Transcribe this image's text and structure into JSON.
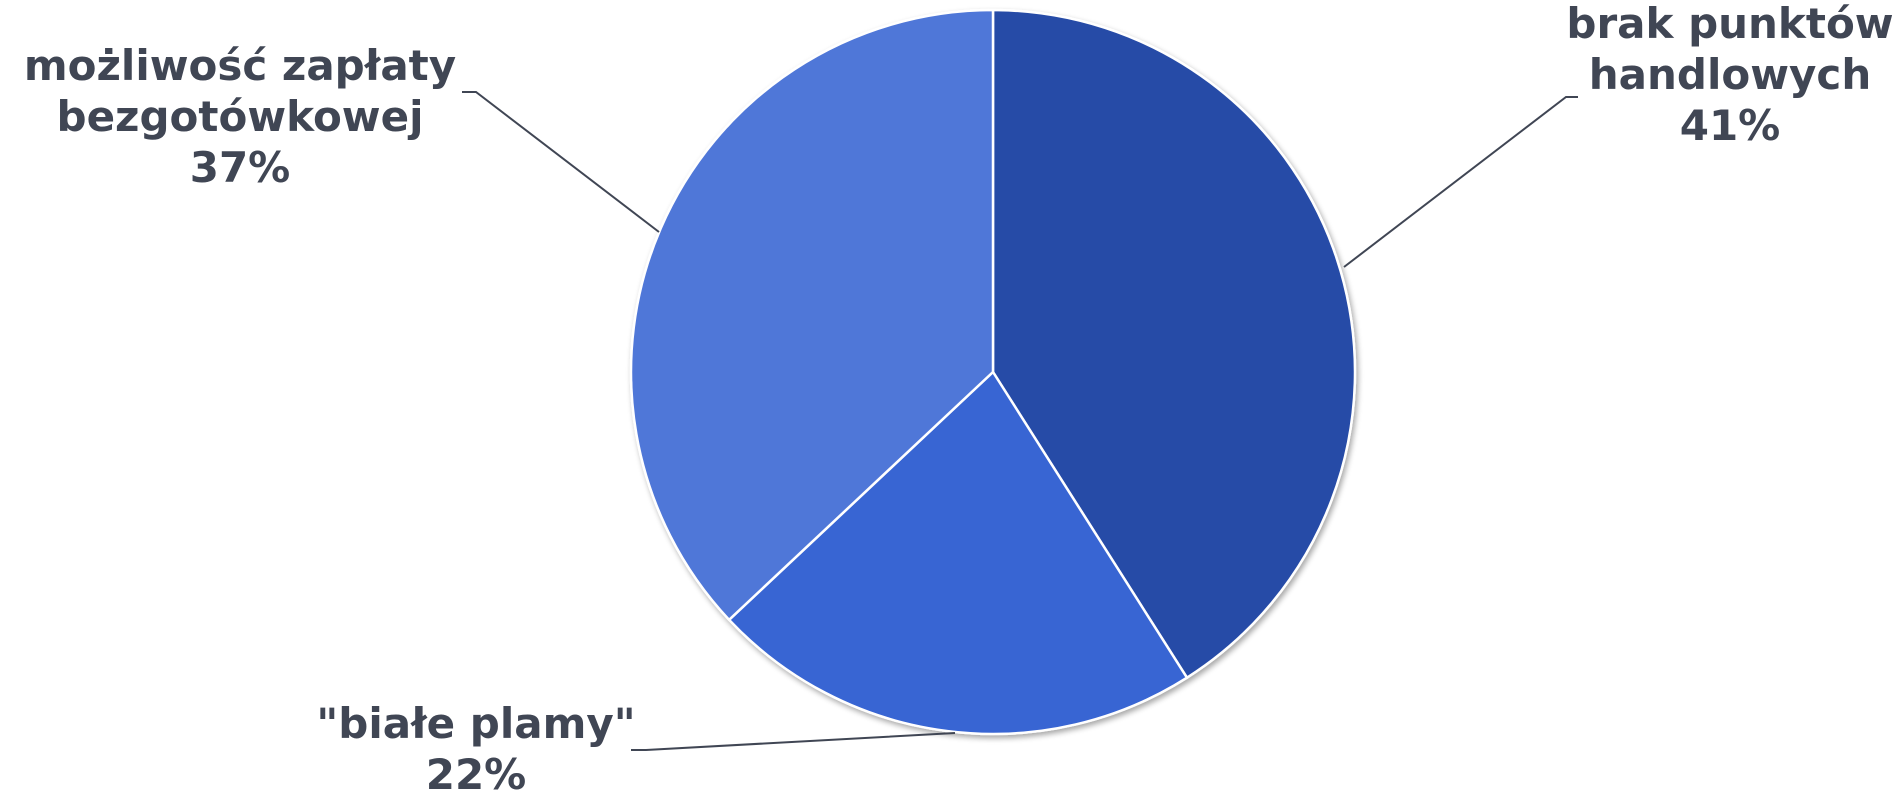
{
  "chart_data": {
    "type": "pie",
    "title": "",
    "slices": [
      {
        "label_lines": [
          "brak punktów",
          "handlowych"
        ],
        "value": 41,
        "value_label": "41%",
        "color": "#264BA7"
      },
      {
        "label_lines": [
          "\"białe plamy\""
        ],
        "value": 22,
        "value_label": "22%",
        "color": "#3865D3"
      },
      {
        "label_lines": [
          "możliwość zapłaty",
          "bezgotówkowej"
        ],
        "value": 37,
        "value_label": "37%",
        "color": "#5077D8"
      }
    ],
    "start_angle": "12 o'clock",
    "direction": "clockwise",
    "legend": "none",
    "label_color": "#404654"
  }
}
